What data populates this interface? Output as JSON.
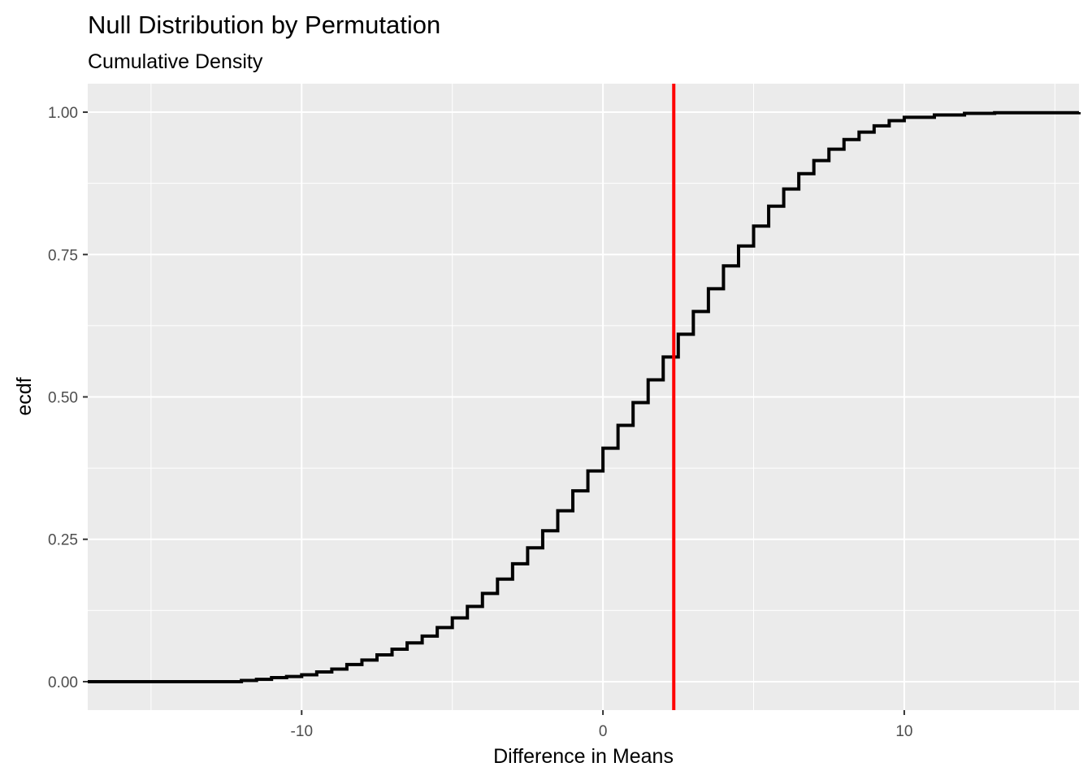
{
  "chart_data": {
    "type": "line",
    "title": "Null Distribution by Permutation",
    "subtitle": "Cumulative Density",
    "xlabel": "Difference in Means",
    "ylabel": "ecdf",
    "xlim": [
      -17.1,
      15.8
    ],
    "ylim": [
      -0.05,
      1.05
    ],
    "x_ticks": [
      -10,
      0,
      10
    ],
    "x_tick_labels": [
      "-10",
      "0",
      "10"
    ],
    "y_ticks": [
      0,
      0.25,
      0.5,
      0.75,
      1.0
    ],
    "y_tick_labels": [
      "0.00",
      "0.25",
      "0.50",
      "0.75",
      "1.00"
    ],
    "grid": true,
    "panel_background": "#ebebeb",
    "grid_color": "#ffffff",
    "series": [
      {
        "color": "#000000",
        "step": true,
        "x": [
          -17.1,
          -12.0,
          -11.5,
          -11.0,
          -10.5,
          -10.0,
          -9.5,
          -9.0,
          -8.5,
          -8.0,
          -7.5,
          -7.0,
          -6.5,
          -6.0,
          -5.5,
          -5.0,
          -4.5,
          -4.0,
          -3.5,
          -3.0,
          -2.5,
          -2.0,
          -1.5,
          -1.0,
          -0.5,
          0.0,
          0.5,
          1.0,
          1.5,
          2.0,
          2.5,
          3.0,
          3.5,
          4.0,
          4.5,
          5.0,
          5.5,
          6.0,
          6.5,
          7.0,
          7.5,
          8.0,
          8.5,
          9.0,
          9.5,
          10.0,
          11.0,
          12.0,
          13.0,
          15.8
        ],
        "y": [
          0.0,
          0.002,
          0.004,
          0.007,
          0.009,
          0.012,
          0.017,
          0.022,
          0.03,
          0.038,
          0.047,
          0.057,
          0.068,
          0.08,
          0.095,
          0.112,
          0.132,
          0.155,
          0.18,
          0.207,
          0.235,
          0.265,
          0.3,
          0.335,
          0.37,
          0.41,
          0.45,
          0.49,
          0.53,
          0.57,
          0.61,
          0.65,
          0.69,
          0.73,
          0.765,
          0.8,
          0.835,
          0.865,
          0.892,
          0.915,
          0.935,
          0.952,
          0.965,
          0.976,
          0.985,
          0.991,
          0.995,
          0.998,
          0.999,
          1.0
        ]
      }
    ],
    "reference_line": {
      "orientation": "vertical",
      "x": 2.35,
      "color": "#ff0000"
    }
  }
}
